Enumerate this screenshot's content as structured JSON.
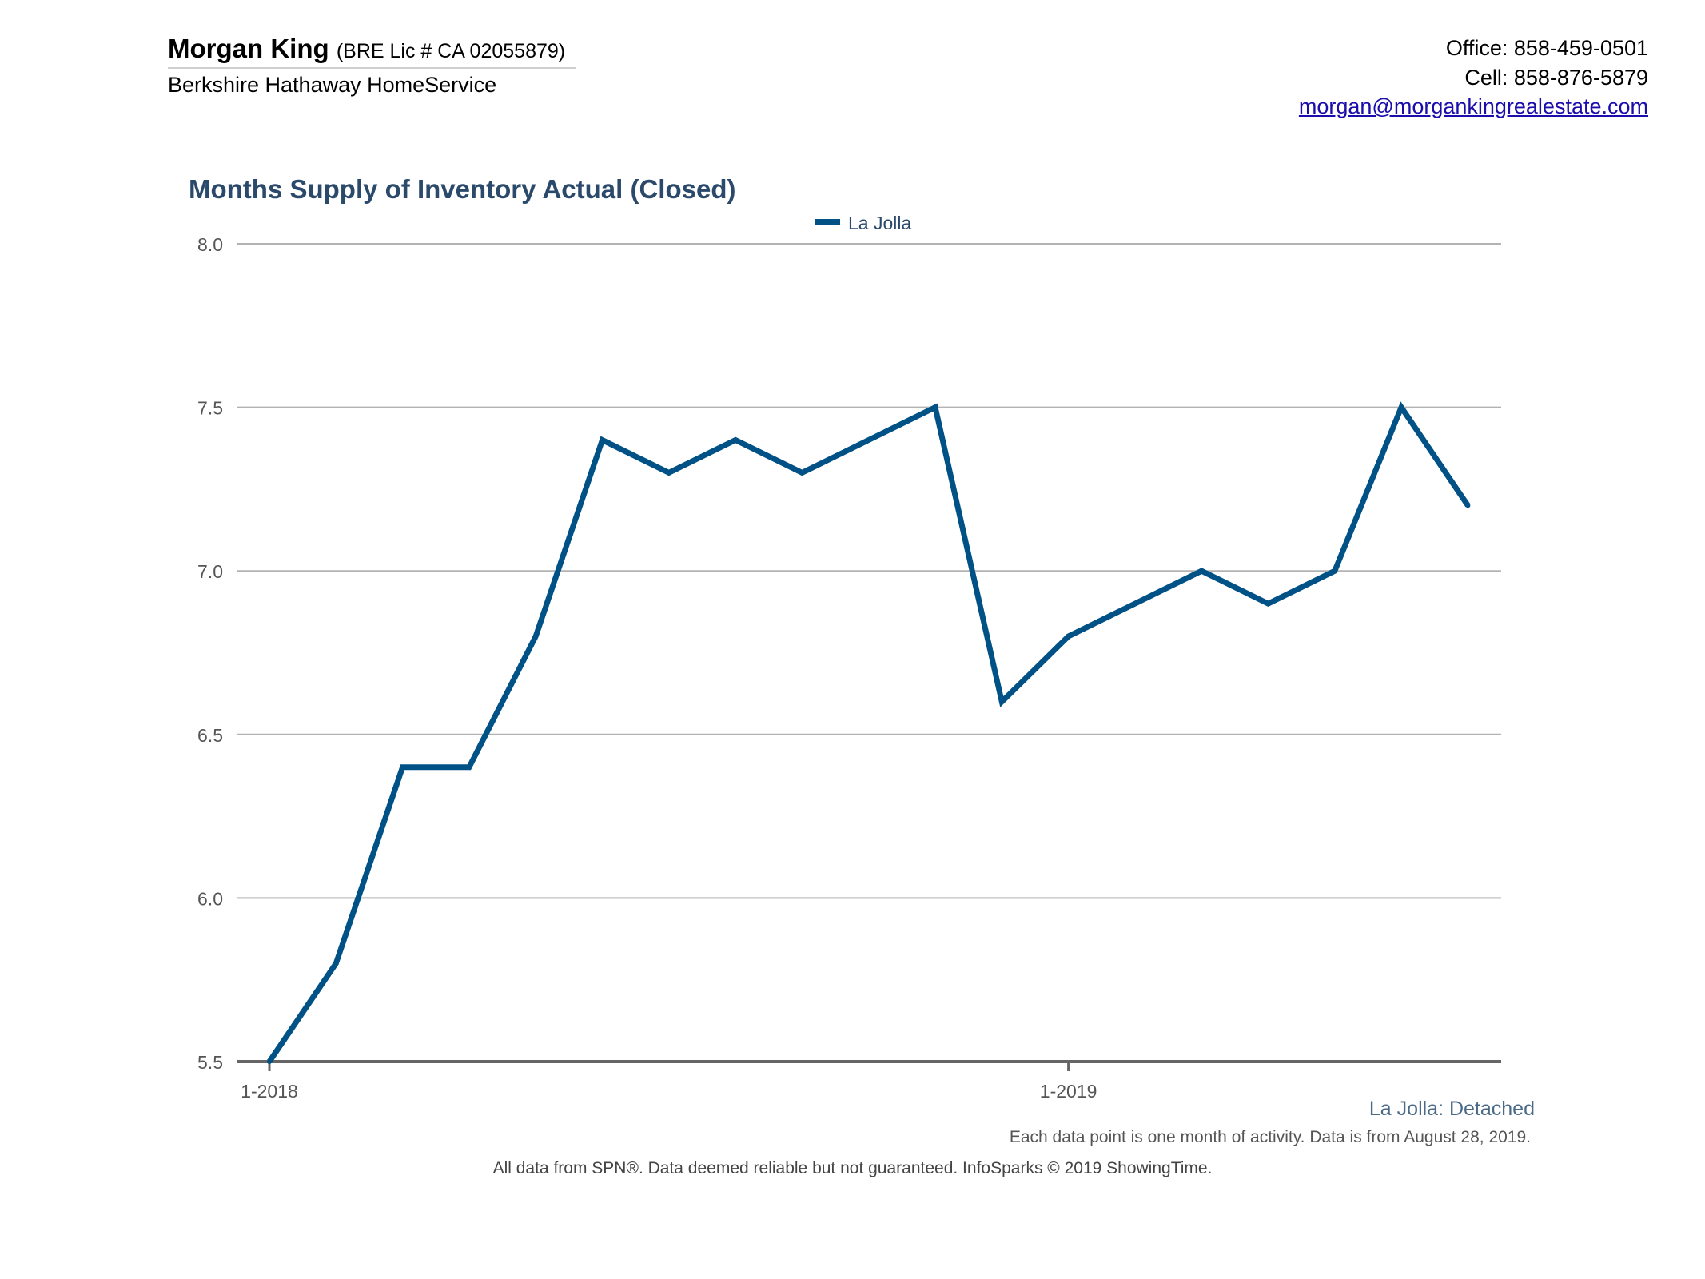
{
  "header": {
    "agent_name": "Morgan King",
    "agent_license": "(BRE Lic # CA 02055879)",
    "agent_company": "Berkshire Hathaway HomeService",
    "office": "Office: 858-459-0501",
    "cell": "Cell: 858-876-5879",
    "email": "morgan@morgankingrealestate.com"
  },
  "footer": {
    "subtitle": "La Jolla: Detached",
    "note": "Each data point is one month of activity. Data is from August 28, 2019.",
    "disclaimer": "All data from SPN®. Data deemed reliable but not guaranteed. InfoSparks © 2019 ShowingTime."
  },
  "colors": {
    "series": "#005185",
    "title": "#2b4a6b",
    "grid": "#b3b3b3",
    "axis": "#666666",
    "link": "#1a0dab"
  },
  "chart_data": {
    "type": "line",
    "title": "Months Supply of Inventory Actual (Closed)",
    "x_tick_labels": [
      "1-2018",
      "1-2019"
    ],
    "x": [
      "2018-01",
      "2018-02",
      "2018-03",
      "2018-04",
      "2018-05",
      "2018-06",
      "2018-07",
      "2018-08",
      "2018-09",
      "2018-10",
      "2018-11",
      "2018-12",
      "2019-01",
      "2019-02",
      "2019-03",
      "2019-04",
      "2019-05",
      "2019-06",
      "2019-07"
    ],
    "series": [
      {
        "name": "La Jolla",
        "values": [
          5.5,
          5.8,
          6.4,
          6.4,
          6.8,
          7.4,
          7.3,
          7.4,
          7.3,
          7.4,
          7.5,
          6.6,
          6.8,
          6.9,
          7.0,
          6.9,
          7.0,
          7.5,
          7.2
        ]
      }
    ],
    "ylim": [
      5.5,
      8.0
    ],
    "yticks": [
      "5.5",
      "6.0",
      "6.5",
      "7.0",
      "7.5",
      "8.0"
    ],
    "grid": true,
    "legend_position": "top-center"
  }
}
